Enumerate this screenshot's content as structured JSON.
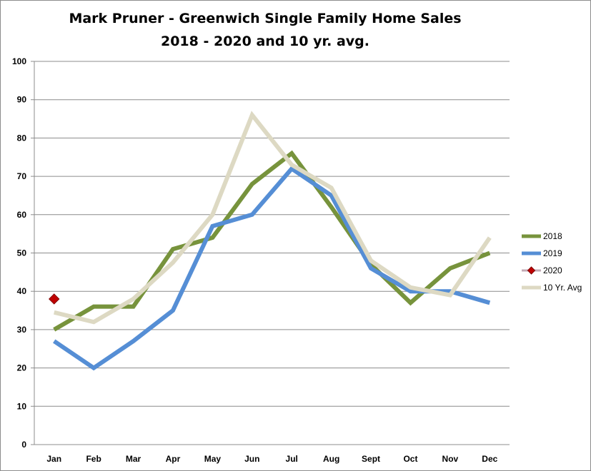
{
  "chart_data": {
    "type": "line",
    "title": "Mark Pruner - Greenwich Single Family Home Sales",
    "subtitle": "2018 - 2020 and 10 yr. avg.",
    "xlabel": "",
    "ylabel": "",
    "categories": [
      "Jan",
      "Feb",
      "Mar",
      "Apr",
      "May",
      "Jun",
      "Jul",
      "Aug",
      "Sept",
      "Oct",
      "Nov",
      "Dec"
    ],
    "ylim": [
      0,
      100
    ],
    "yticks": [
      0,
      10,
      20,
      30,
      40,
      50,
      60,
      70,
      80,
      90,
      100
    ],
    "grid": true,
    "legend_position": "right",
    "series": [
      {
        "name": "2018",
        "color": "#77933c",
        "marker": "none",
        "values": [
          30,
          36,
          36,
          51,
          54,
          68,
          76,
          62,
          47,
          37,
          46,
          50
        ]
      },
      {
        "name": "2019",
        "color": "#558ed5",
        "marker": "none",
        "values": [
          27,
          20,
          27,
          35,
          57,
          60,
          72,
          65,
          46,
          40,
          40,
          37
        ]
      },
      {
        "name": "2020",
        "color": "#c00000",
        "marker": "diamond",
        "values": [
          38,
          null,
          null,
          null,
          null,
          null,
          null,
          null,
          null,
          null,
          null,
          null
        ]
      },
      {
        "name": "10 Yr. Avg",
        "color": "#ddd9c3",
        "marker": "none",
        "values": [
          34.5,
          32,
          38,
          47.5,
          60,
          86,
          73,
          67,
          48,
          41,
          39,
          54
        ]
      }
    ]
  }
}
